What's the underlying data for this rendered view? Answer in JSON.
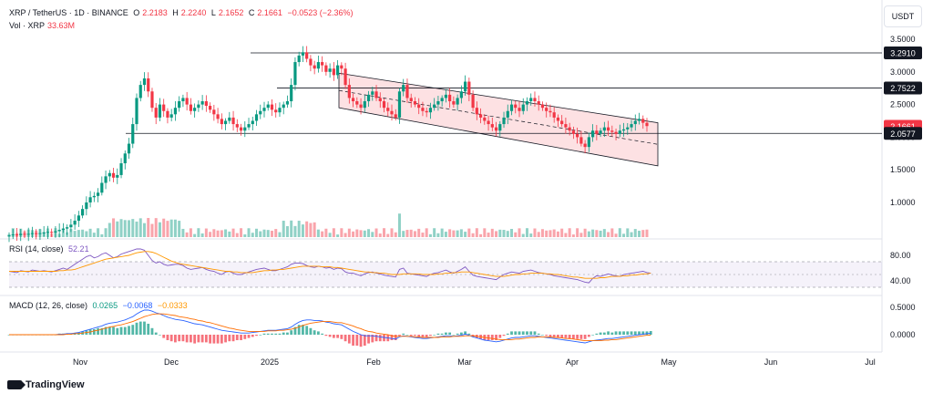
{
  "header": {
    "symbol_line": "XRP / TetherUS · 1D · BINANCE",
    "o_label": "O",
    "o_value": "2.2183",
    "h_label": "H",
    "h_value": "2.2240",
    "l_label": "L",
    "l_value": "2.1652",
    "c_label": "C",
    "c_value": "2.1661",
    "change": "−0.0523 (−2.36%)",
    "vol_label": "Vol · XRP",
    "vol_value": "33.63M"
  },
  "currency_button": "USDT",
  "branding": "TradingView",
  "chart_data": [
    {
      "type": "candlestick",
      "title": "XRP / TetherUS · 1D · BINANCE",
      "x_ticks": [
        "Nov",
        "Dec",
        "2025",
        "Feb",
        "Mar",
        "Apr",
        "May",
        "Jun",
        "Jul"
      ],
      "y_ticks": [
        "3.5000",
        "3.0000",
        "2.5000",
        "2.0000",
        "1.5000",
        "1.0000"
      ],
      "ylim": [
        0.5,
        3.6
      ],
      "price_labels": [
        {
          "value": "3.2910",
          "color": "#131722"
        },
        {
          "value": "2.7522",
          "color": "#131722"
        },
        {
          "value": "2.1661",
          "color": "#f23645"
        },
        {
          "value": "2.0577",
          "color": "#131722"
        }
      ],
      "horizontal_levels": [
        3.291,
        2.7522,
        2.0577
      ],
      "close_series": [
        0.5,
        0.51,
        0.5,
        0.52,
        0.51,
        0.52,
        0.53,
        0.52,
        0.53,
        0.54,
        0.55,
        0.54,
        0.56,
        0.58,
        0.6,
        0.62,
        0.66,
        0.72,
        0.8,
        0.9,
        1.0,
        1.08,
        1.1,
        1.15,
        1.3,
        1.4,
        1.45,
        1.38,
        1.42,
        1.6,
        1.75,
        1.9,
        2.2,
        2.6,
        2.8,
        2.9,
        2.7,
        2.45,
        2.3,
        2.5,
        2.4,
        2.3,
        2.35,
        2.45,
        2.55,
        2.6,
        2.5,
        2.4,
        2.45,
        2.5,
        2.55,
        2.48,
        2.42,
        2.35,
        2.28,
        2.2,
        2.25,
        2.3,
        2.2,
        2.15,
        2.1,
        2.15,
        2.2,
        2.25,
        2.35,
        2.4,
        2.45,
        2.5,
        2.42,
        2.38,
        2.45,
        2.5,
        2.55,
        2.8,
        3.15,
        3.25,
        3.3,
        3.2,
        3.1,
        3.05,
        3.15,
        3.1,
        3.0,
        3.05,
        2.95,
        3.1,
        3.05,
        2.8,
        2.6,
        2.55,
        2.5,
        2.45,
        2.55,
        2.65,
        2.7,
        2.6,
        2.55,
        2.45,
        2.4,
        2.35,
        2.3,
        2.7,
        2.8,
        2.6,
        2.55,
        2.5,
        2.45,
        2.4,
        2.38,
        2.45,
        2.5,
        2.55,
        2.6,
        2.65,
        2.55,
        2.5,
        2.6,
        2.7,
        2.85,
        2.65,
        2.45,
        2.35,
        2.3,
        2.25,
        2.2,
        2.15,
        2.1,
        2.2,
        2.3,
        2.4,
        2.5,
        2.45,
        2.4,
        2.5,
        2.55,
        2.6,
        2.55,
        2.5,
        2.45,
        2.4,
        2.38,
        2.3,
        2.25,
        2.2,
        2.15,
        2.1,
        2.05,
        2.0,
        1.9,
        1.85,
        2.0,
        2.1,
        2.05,
        2.1,
        2.15,
        2.1,
        2.08,
        2.05,
        2.1,
        2.12,
        2.15,
        2.2,
        2.25,
        2.28,
        2.22,
        2.17
      ],
      "channel": {
        "upper_start": 2.98,
        "upper_end": 2.22,
        "lower_start": 2.45,
        "lower_end": 1.56
      },
      "volume": {
        "label": "Vol · XRP",
        "last": "33.63M"
      }
    },
    {
      "type": "line",
      "title": "RSI (14, close)",
      "last_value": "52.21",
      "y_ticks": [
        "80.00",
        "40.00"
      ],
      "ylim": [
        20,
        95
      ],
      "band": [
        30,
        70
      ],
      "series": [
        {
          "name": "RSI",
          "color": "#7e57c2",
          "values": [
            55,
            54,
            53,
            56,
            55,
            54,
            57,
            56,
            55,
            56,
            55,
            54,
            56,
            58,
            60,
            58,
            62,
            66,
            70,
            74,
            78,
            80,
            76,
            78,
            82,
            84,
            80,
            76,
            78,
            82,
            84,
            86,
            88,
            90,
            90,
            88,
            80,
            72,
            68,
            70,
            66,
            64,
            65,
            66,
            66,
            64,
            60,
            58,
            59,
            60,
            61,
            58,
            56,
            55,
            52,
            50,
            54,
            55,
            52,
            50,
            50,
            52,
            54,
            56,
            58,
            59,
            60,
            58,
            56,
            56,
            58,
            60,
            62,
            66,
            68,
            68,
            67,
            64,
            62,
            61,
            63,
            62,
            60,
            61,
            58,
            60,
            59,
            54,
            52,
            52,
            50,
            48,
            51,
            53,
            54,
            52,
            51,
            49,
            48,
            47,
            46,
            58,
            60,
            52,
            51,
            50,
            49,
            48,
            47,
            50,
            52,
            53,
            55,
            57,
            54,
            52,
            55,
            58,
            62,
            55,
            49,
            47,
            46,
            45,
            44,
            43,
            42,
            46,
            50,
            52,
            54,
            53,
            52,
            55,
            56,
            57,
            55,
            53,
            52,
            51,
            50,
            48,
            47,
            46,
            45,
            44,
            43,
            42,
            40,
            38,
            37,
            44,
            48,
            47,
            49,
            51,
            49,
            48,
            47,
            50,
            51,
            52,
            53,
            54,
            55,
            53,
            52
          ]
        },
        {
          "name": "RSI-based MA",
          "color": "#ff9800",
          "values": [
            55,
            55,
            55,
            55,
            55,
            55,
            55,
            55,
            55,
            55,
            55,
            55,
            55,
            56,
            56,
            57,
            57,
            58,
            60,
            62,
            64,
            66,
            68,
            70,
            72,
            74,
            75,
            76,
            77,
            78,
            79,
            80,
            82,
            84,
            85,
            86,
            86,
            85,
            83,
            80,
            77,
            74,
            71,
            69,
            67,
            66,
            65,
            64,
            63,
            62,
            61,
            60,
            59,
            58,
            57,
            56,
            55,
            55,
            54,
            54,
            53,
            53,
            53,
            53,
            54,
            55,
            56,
            56,
            57,
            57,
            58,
            58,
            59,
            60,
            61,
            62,
            63,
            63,
            63,
            63,
            63,
            62,
            62,
            62,
            61,
            61,
            60,
            59,
            58,
            57,
            56,
            55,
            54,
            54,
            53,
            53,
            52,
            52,
            51,
            50,
            50,
            50,
            51,
            51,
            51,
            51,
            51,
            50,
            50,
            50,
            50,
            51,
            51,
            52,
            52,
            53,
            53,
            54,
            54,
            54,
            53,
            52,
            51,
            50,
            49,
            48,
            47,
            47,
            47,
            48,
            49,
            50,
            50,
            51,
            51,
            52,
            52,
            52,
            52,
            51,
            51,
            50,
            50,
            49,
            48,
            47,
            46,
            46,
            45,
            44,
            44,
            44,
            44,
            45,
            45,
            46,
            47,
            47,
            47,
            48,
            48,
            49,
            49,
            50,
            51,
            51,
            52
          ]
        }
      ]
    },
    {
      "type": "line",
      "title": "MACD (12, 26, close)",
      "values_shown": [
        "0.0265",
        "−0.0068",
        "−0.0333"
      ],
      "y_ticks": [
        "0.5000",
        "0.0000"
      ],
      "ylim": [
        -0.25,
        0.55
      ],
      "series": [
        {
          "name": "MACD",
          "color": "#2962ff",
          "values": [
            0.0,
            0.0,
            0.0,
            0.0,
            0.0,
            0.0,
            0.0,
            0.0,
            0.0,
            0.0,
            0.0,
            0.0,
            0.0,
            0.01,
            0.01,
            0.02,
            0.02,
            0.03,
            0.04,
            0.06,
            0.08,
            0.1,
            0.12,
            0.14,
            0.16,
            0.19,
            0.21,
            0.22,
            0.23,
            0.25,
            0.27,
            0.3,
            0.33,
            0.38,
            0.42,
            0.45,
            0.45,
            0.43,
            0.4,
            0.38,
            0.35,
            0.32,
            0.3,
            0.28,
            0.27,
            0.26,
            0.24,
            0.22,
            0.2,
            0.19,
            0.18,
            0.16,
            0.14,
            0.12,
            0.1,
            0.08,
            0.07,
            0.06,
            0.05,
            0.04,
            0.03,
            0.03,
            0.03,
            0.04,
            0.05,
            0.06,
            0.07,
            0.08,
            0.08,
            0.08,
            0.09,
            0.1,
            0.11,
            0.14,
            0.19,
            0.23,
            0.26,
            0.27,
            0.27,
            0.26,
            0.26,
            0.25,
            0.23,
            0.22,
            0.2,
            0.19,
            0.18,
            0.14,
            0.1,
            0.06,
            0.03,
            0.0,
            -0.02,
            -0.02,
            -0.02,
            -0.03,
            -0.04,
            -0.05,
            -0.06,
            -0.07,
            -0.08,
            -0.04,
            -0.02,
            -0.03,
            -0.04,
            -0.05,
            -0.06,
            -0.07,
            -0.07,
            -0.06,
            -0.05,
            -0.04,
            -0.03,
            -0.02,
            -0.02,
            -0.03,
            -0.02,
            -0.01,
            0.01,
            -0.01,
            -0.04,
            -0.06,
            -0.08,
            -0.1,
            -0.11,
            -0.12,
            -0.13,
            -0.12,
            -0.1,
            -0.08,
            -0.06,
            -0.05,
            -0.05,
            -0.04,
            -0.03,
            -0.02,
            -0.02,
            -0.03,
            -0.04,
            -0.05,
            -0.06,
            -0.07,
            -0.08,
            -0.09,
            -0.1,
            -0.11,
            -0.12,
            -0.13,
            -0.14,
            -0.15,
            -0.13,
            -0.11,
            -0.1,
            -0.09,
            -0.08,
            -0.07,
            -0.07,
            -0.06,
            -0.05,
            -0.04,
            -0.03,
            -0.02,
            -0.01,
            0.0,
            0.01,
            0.02,
            0.0265
          ]
        },
        {
          "name": "Signal",
          "color": "#ff6d00",
          "values": [
            0.0,
            0.0,
            0.0,
            0.0,
            0.0,
            0.0,
            0.0,
            0.0,
            0.0,
            0.0,
            0.0,
            0.0,
            0.0,
            0.0,
            0.0,
            0.01,
            0.01,
            0.02,
            0.02,
            0.03,
            0.04,
            0.05,
            0.07,
            0.08,
            0.1,
            0.12,
            0.14,
            0.15,
            0.17,
            0.18,
            0.2,
            0.22,
            0.24,
            0.27,
            0.3,
            0.33,
            0.35,
            0.37,
            0.38,
            0.38,
            0.38,
            0.37,
            0.36,
            0.35,
            0.33,
            0.32,
            0.31,
            0.29,
            0.28,
            0.26,
            0.25,
            0.23,
            0.22,
            0.2,
            0.18,
            0.16,
            0.14,
            0.12,
            0.11,
            0.09,
            0.08,
            0.07,
            0.06,
            0.06,
            0.06,
            0.06,
            0.06,
            0.07,
            0.07,
            0.07,
            0.08,
            0.08,
            0.09,
            0.1,
            0.12,
            0.14,
            0.17,
            0.19,
            0.21,
            0.22,
            0.23,
            0.24,
            0.24,
            0.24,
            0.23,
            0.22,
            0.22,
            0.2,
            0.18,
            0.16,
            0.13,
            0.11,
            0.08,
            0.06,
            0.05,
            0.03,
            0.02,
            0.01,
            0.0,
            -0.02,
            -0.03,
            -0.03,
            -0.03,
            -0.03,
            -0.03,
            -0.04,
            -0.04,
            -0.05,
            -0.05,
            -0.05,
            -0.05,
            -0.05,
            -0.04,
            -0.04,
            -0.04,
            -0.03,
            -0.03,
            -0.03,
            -0.02,
            -0.02,
            -0.02,
            -0.03,
            -0.04,
            -0.05,
            -0.06,
            -0.07,
            -0.08,
            -0.09,
            -0.09,
            -0.09,
            -0.09,
            -0.08,
            -0.08,
            -0.07,
            -0.06,
            -0.05,
            -0.05,
            -0.04,
            -0.04,
            -0.04,
            -0.04,
            -0.05,
            -0.05,
            -0.06,
            -0.07,
            -0.07,
            -0.08,
            -0.09,
            -0.1,
            -0.11,
            -0.11,
            -0.11,
            -0.11,
            -0.11,
            -0.1,
            -0.1,
            -0.09,
            -0.09,
            -0.08,
            -0.07,
            -0.06,
            -0.05,
            -0.04,
            -0.03,
            -0.02,
            -0.01,
            -0.0068
          ]
        }
      ]
    }
  ]
}
